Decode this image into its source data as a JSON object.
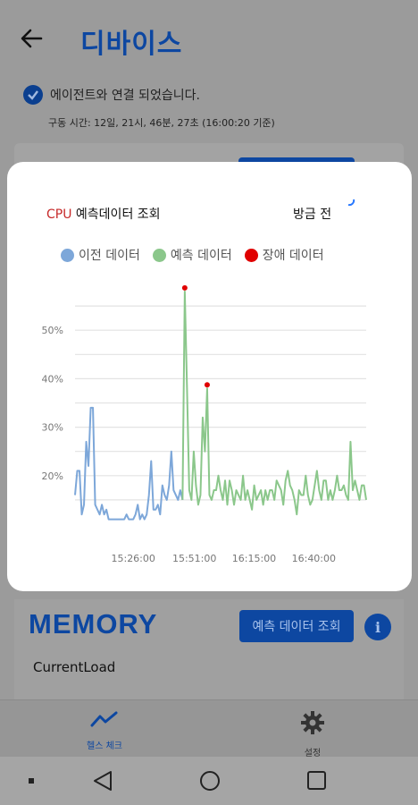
{
  "header": {
    "title": "디바이스"
  },
  "status": {
    "text": "에이전트와 연결 되었습니다.",
    "uptime": "구동 시간: 12일, 21시, 46분, 27초 (16:00:20 기준)"
  },
  "memory_card": {
    "title": "MEMORY",
    "predict_button": "예측 데이터 조회",
    "info_icon": "i",
    "label": "CurrentLoad"
  },
  "bottom_nav": {
    "items": [
      {
        "label": "헬스 체크",
        "icon": "chart-line-icon"
      },
      {
        "label": "설정",
        "icon": "gear-icon"
      }
    ]
  },
  "modal": {
    "title_prefix": "CPU",
    "title_rest": " 예측데이터 조회",
    "time_label": "방금 전"
  },
  "colors": {
    "primary": "#0d47a1",
    "previous": "#7da7d9",
    "predicted": "#8bc78b",
    "fault": "#e00000"
  },
  "chart_data": {
    "type": "line",
    "legend": [
      "이전 데이터",
      "예측 데이터",
      "장애 데이터"
    ],
    "legend_position": "top",
    "y_ticks": [
      "20%",
      "30%",
      "40%",
      "50%"
    ],
    "x_ticks": [
      "15:26:00",
      "15:51:00",
      "16:15:00",
      "16:40:00"
    ],
    "ylim": [
      10,
      60
    ],
    "grid": true,
    "series": [
      {
        "name": "이전 데이터",
        "values": [
          16,
          21,
          21,
          12,
          14,
          27,
          22,
          34,
          34,
          14,
          13,
          12,
          14,
          12,
          13,
          11,
          11,
          11,
          11,
          11,
          11,
          11,
          11,
          12,
          11,
          11,
          11,
          12,
          14,
          11,
          12,
          11,
          12,
          16,
          23,
          13,
          13,
          14,
          12,
          18,
          16,
          15,
          18,
          25,
          17,
          16,
          15,
          17,
          15
        ]
      },
      {
        "name": "예측 데이터",
        "offset": 48,
        "values": [
          15,
          58,
          38,
          17,
          15,
          25,
          18,
          14,
          16,
          32,
          25,
          38,
          16,
          15,
          17,
          17,
          20,
          17,
          15,
          19,
          14,
          19,
          17,
          14,
          17,
          16,
          15,
          20,
          15,
          17,
          15,
          13,
          18,
          15,
          16,
          17,
          14,
          17,
          15,
          17,
          17,
          15,
          19,
          18,
          17,
          14,
          19,
          21,
          18,
          17,
          15,
          12,
          17,
          16,
          16,
          20,
          16,
          14,
          15,
          18,
          21,
          17,
          15,
          19,
          19,
          15,
          17,
          15,
          17,
          20,
          17,
          17,
          18,
          16,
          15,
          27,
          17,
          19,
          17,
          15,
          18,
          18,
          15
        ]
      }
    ],
    "fault_points": [
      {
        "index": 49,
        "value": 58
      },
      {
        "index": 59,
        "value": 38
      }
    ]
  }
}
